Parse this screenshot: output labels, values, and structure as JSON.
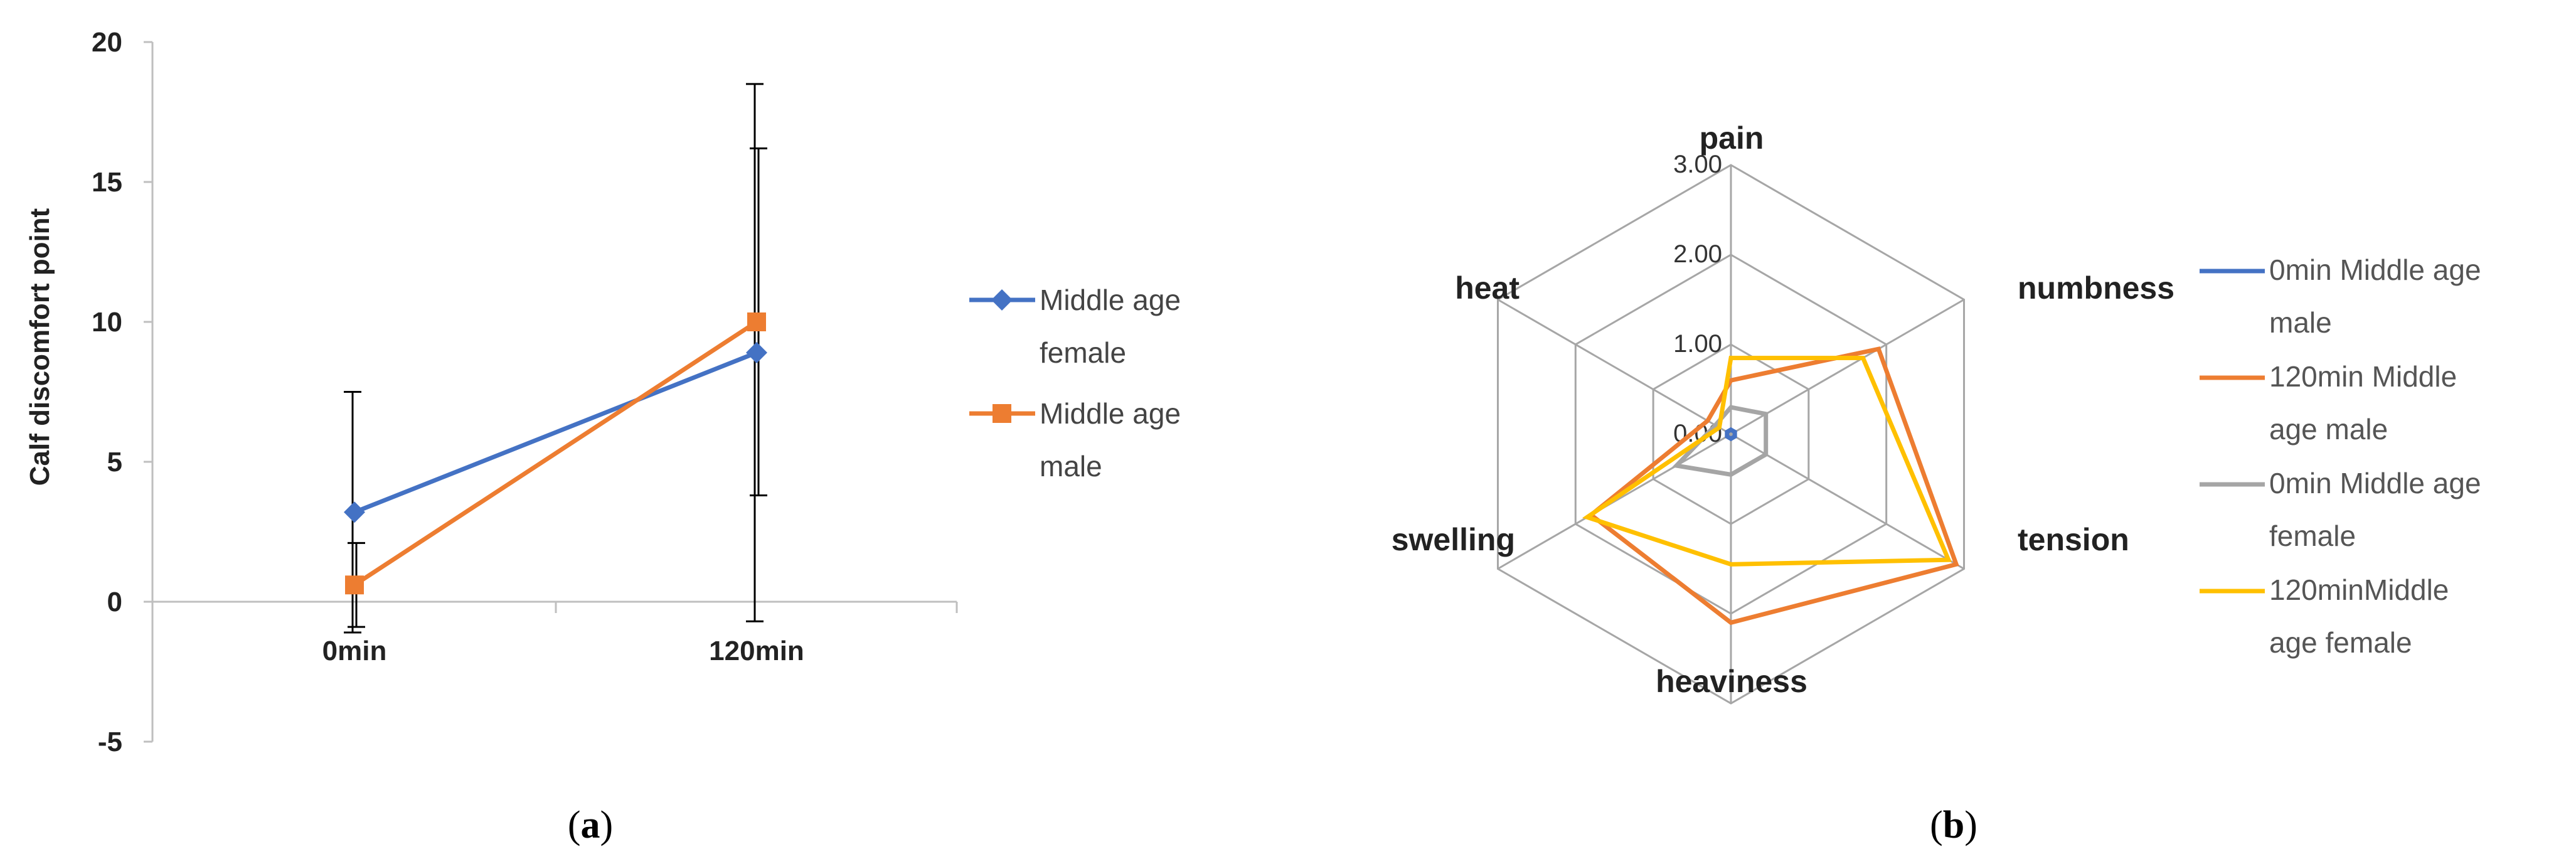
{
  "chart_data": [
    {
      "type": "line",
      "panel_label_letter": "a",
      "ylabel": "Calf  discomfort point",
      "xlabel": "",
      "categories": [
        "0min",
        "120min"
      ],
      "ylim": [
        -5,
        20
      ],
      "yticks": [
        "20",
        "15",
        "10",
        "5",
        "0",
        "-5"
      ],
      "ytick_values": [
        20,
        15,
        10,
        5,
        0,
        -5
      ],
      "legend_position": "right",
      "grid": false,
      "series": [
        {
          "name": "Middle age female",
          "name_lines": [
            "Middle age",
            "female"
          ],
          "color": "#4472C4",
          "marker": "diamond",
          "values": [
            3.2,
            8.9
          ],
          "error": [
            4.3,
            9.6
          ]
        },
        {
          "name": "Middle age male",
          "name_lines": [
            "Middle age",
            "male"
          ],
          "color": "#ED7D31",
          "marker": "square",
          "values": [
            0.6,
            10.0
          ],
          "error": [
            1.5,
            6.2
          ]
        }
      ]
    },
    {
      "type": "radar",
      "panel_label_letter": "b",
      "categories": [
        "pain",
        "numbness",
        "tension",
        "heaviness",
        "swelling",
        "heat"
      ],
      "rmax": 3.0,
      "ring_labels": [
        "0.00",
        "1.00",
        "2.00",
        "3.00"
      ],
      "legend_position": "right",
      "series": [
        {
          "name": "0min Middle age male",
          "name_lines": [
            "0min Middle age",
            "male"
          ],
          "color": "#4472C4",
          "values": [
            0.05,
            0.05,
            0.05,
            0.05,
            0.05,
            0.05
          ]
        },
        {
          "name": "120min Middle age male",
          "name_lines": [
            "120min Middle",
            "age male"
          ],
          "color": "#ED7D31",
          "values": [
            0.6,
            1.9,
            2.9,
            2.1,
            1.8,
            0.3
          ]
        },
        {
          "name": "0min Middle age female",
          "name_lines": [
            "0min Middle age",
            "female"
          ],
          "color": "#A5A5A5",
          "values": [
            0.3,
            0.45,
            0.45,
            0.45,
            0.7,
            0.2
          ]
        },
        {
          "name": "120minMiddle age female",
          "name_lines": [
            "120minMiddle",
            "age female"
          ],
          "color": "#FFC000",
          "values": [
            0.85,
            1.7,
            2.8,
            1.45,
            1.85,
            0.15
          ]
        }
      ]
    }
  ]
}
